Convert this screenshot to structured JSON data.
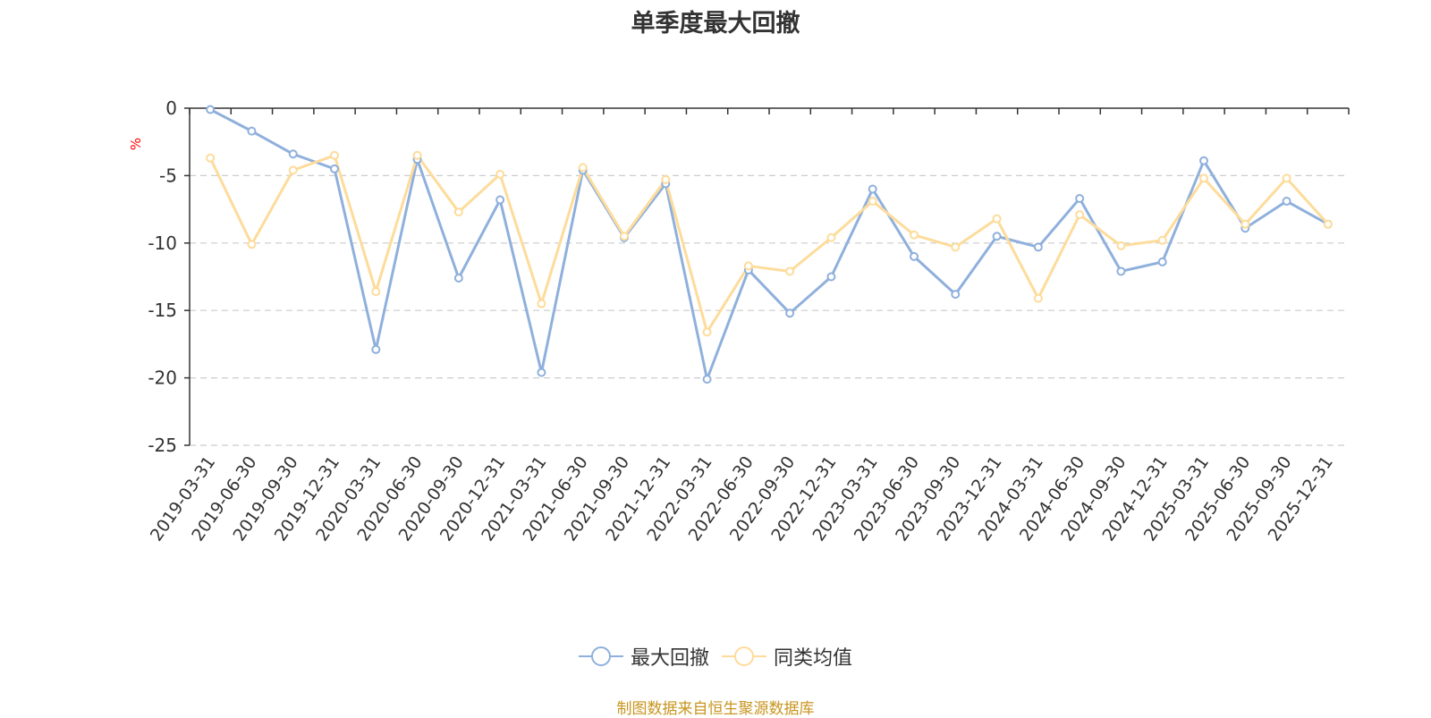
{
  "chart_data": {
    "type": "line",
    "title": "单季度最大回撤",
    "ylabel": "%",
    "ylim": [
      -25,
      0
    ],
    "yticks": [
      0,
      -5,
      -10,
      -15,
      -20,
      -25
    ],
    "grid": true,
    "legend_position": "bottom",
    "categories": [
      "2019-03-31",
      "2019-06-30",
      "2019-09-30",
      "2019-12-31",
      "2020-03-31",
      "2020-06-30",
      "2020-09-30",
      "2020-12-31",
      "2021-03-31",
      "2021-06-30",
      "2021-09-30",
      "2021-12-31",
      "2022-03-31",
      "2022-06-30",
      "2022-09-30",
      "2022-12-31",
      "2023-03-31",
      "2023-06-30",
      "2023-09-30",
      "2023-12-31",
      "2024-03-31",
      "2024-06-30",
      "2024-09-30",
      "2024-12-31",
      "2025-03-31",
      "2025-06-30",
      "2025-09-30",
      "2025-12-31"
    ],
    "series": [
      {
        "name": "最大回撤",
        "color": "#8fb0dc",
        "values": [
          -0.1,
          -1.7,
          -3.4,
          -4.5,
          -17.9,
          -3.8,
          -12.6,
          -6.8,
          -19.6,
          -4.6,
          -9.6,
          -5.6,
          -20.1,
          -12.0,
          -15.2,
          -12.5,
          -6.0,
          -11.0,
          -13.8,
          -9.5,
          -10.3,
          -6.7,
          -12.1,
          -11.4,
          -3.9,
          -8.9,
          -6.9,
          -8.6
        ]
      },
      {
        "name": "同类均值",
        "color": "#fddc9b",
        "values": [
          -3.7,
          -10.1,
          -4.6,
          -3.5,
          -13.6,
          -3.5,
          -7.7,
          -4.9,
          -14.5,
          -4.4,
          -9.5,
          -5.3,
          -16.6,
          -11.7,
          -12.1,
          -9.6,
          -6.9,
          -9.4,
          -10.3,
          -8.2,
          -14.1,
          -7.9,
          -10.2,
          -9.8,
          -5.2,
          -8.6,
          -5.2,
          -8.6
        ]
      }
    ]
  },
  "source_note": "制图数据来自恒生聚源数据库",
  "colors": {
    "axis": "#333333",
    "grid": "#cccccc",
    "ylabel": "#ff0000",
    "source": "#c8951f"
  }
}
